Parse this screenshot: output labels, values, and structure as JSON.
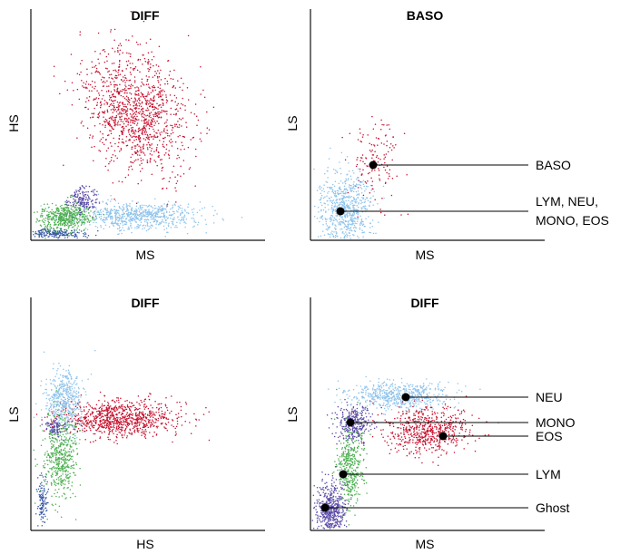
{
  "colors": {
    "red": "#c8102e",
    "light_blue": "#8ec3ec",
    "green": "#4caf50",
    "purple": "#5b4aa8",
    "dark_blue": "#3a5aa8",
    "axis": "#111111",
    "callout": "#000000"
  },
  "chart_data": [
    {
      "type": "scatter",
      "title": "DIFF",
      "xlabel": "MS",
      "ylabel": "HS",
      "xlim": [
        0,
        100
      ],
      "ylim": [
        0,
        100
      ],
      "clusters": [
        {
          "color": "red",
          "cx": 45,
          "cy": 56,
          "sx": 10,
          "sy": 15,
          "rot": 28,
          "n": 1200
        },
        {
          "color": "light_blue",
          "cx": 45,
          "cy": 10,
          "sx": 14,
          "sy": 3,
          "rot": 0,
          "n": 700
        },
        {
          "color": "green",
          "cx": 14,
          "cy": 9,
          "sx": 6,
          "sy": 3,
          "rot": 8,
          "n": 500
        },
        {
          "color": "purple",
          "cx": 22,
          "cy": 17,
          "sx": 3,
          "sy": 3,
          "rot": 0,
          "n": 160
        },
        {
          "color": "dark_blue",
          "cx": 10,
          "cy": 2,
          "sx": 6,
          "sy": 1,
          "rot": 0,
          "n": 180
        }
      ]
    },
    {
      "type": "scatter",
      "title": "BASO",
      "xlabel": "MS",
      "ylabel": "LS",
      "xlim": [
        0,
        100
      ],
      "ylim": [
        0,
        100
      ],
      "clusters": [
        {
          "color": "red",
          "cx": 27,
          "cy": 34,
          "sx": 6,
          "sy": 10,
          "rot": 0,
          "n": 140
        },
        {
          "color": "light_blue",
          "cx": 14,
          "cy": 13,
          "sx": 6,
          "sy": 8,
          "rot": 0,
          "n": 700
        }
      ],
      "callouts": [
        {
          "label_lines": [
            "BASO"
          ],
          "point": [
            28,
            33
          ]
        },
        {
          "label_lines": [
            "LYM, NEU,",
            "MONO, EOS"
          ],
          "point": [
            14,
            12
          ]
        }
      ]
    },
    {
      "type": "scatter",
      "title": "DIFF",
      "xlabel": "HS",
      "ylabel": "LS",
      "xlim": [
        0,
        100
      ],
      "ylim": [
        0,
        100
      ],
      "clusters": [
        {
          "color": "red",
          "cx": 37,
          "cy": 48,
          "sx": 13,
          "sy": 4,
          "rot": 0,
          "n": 900
        },
        {
          "color": "light_blue",
          "cx": 14,
          "cy": 56,
          "sx": 4,
          "sy": 7,
          "rot": 0,
          "n": 500
        },
        {
          "color": "green",
          "cx": 12,
          "cy": 31,
          "sx": 3.5,
          "sy": 9,
          "rot": 0,
          "n": 500
        },
        {
          "color": "purple",
          "cx": 10,
          "cy": 44,
          "sx": 2,
          "sy": 2,
          "rot": 0,
          "n": 80
        },
        {
          "color": "dark_blue",
          "cx": 4,
          "cy": 11,
          "sx": 1.2,
          "sy": 6,
          "rot": 0,
          "n": 120
        }
      ]
    },
    {
      "type": "scatter",
      "title": "DIFF",
      "xlabel": "MS",
      "ylabel": "LS",
      "xlim": [
        0,
        100
      ],
      "ylim": [
        0,
        100
      ],
      "clusters": [
        {
          "color": "light_blue",
          "cx": 38,
          "cy": 58,
          "sx": 11,
          "sy": 3,
          "rot": 0,
          "n": 600
        },
        {
          "color": "purple",
          "cx": 18,
          "cy": 46,
          "sx": 4,
          "sy": 4,
          "rot": 0,
          "n": 300
        },
        {
          "color": "red",
          "cx": 50,
          "cy": 43,
          "sx": 9,
          "sy": 5,
          "rot": 0,
          "n": 600
        },
        {
          "color": "green",
          "cx": 16,
          "cy": 26,
          "sx": 3,
          "sy": 9,
          "rot": 0,
          "n": 400
        },
        {
          "color": "purple",
          "cx": 8,
          "cy": 8,
          "sx": 3,
          "sy": 6,
          "rot": 0,
          "n": 500
        }
      ],
      "callouts": [
        {
          "label_lines": [
            "NEU"
          ],
          "point": [
            36,
            59
          ]
        },
        {
          "label_lines": [
            "MONO"
          ],
          "point": [
            15,
            46
          ]
        },
        {
          "label_lines": [
            "EOS"
          ],
          "point": [
            51,
            39
          ]
        },
        {
          "label_lines": [
            "LYM"
          ],
          "point": [
            12,
            23
          ]
        },
        {
          "label_lines": [
            "Ghost"
          ],
          "point": [
            5,
            5
          ]
        }
      ]
    }
  ]
}
